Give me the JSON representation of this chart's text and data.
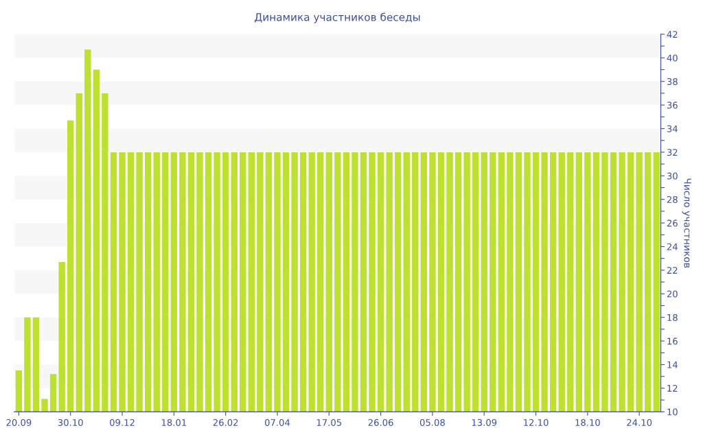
{
  "chart_data": {
    "type": "bar",
    "title": "Динамика участников беседы",
    "ylabel": "Число участников",
    "categories": [
      "20.09",
      null,
      null,
      null,
      null,
      null,
      "30.10",
      null,
      null,
      null,
      null,
      null,
      "09.12",
      null,
      null,
      null,
      null,
      null,
      "18.01",
      null,
      null,
      null,
      null,
      null,
      "26.02",
      null,
      null,
      null,
      null,
      null,
      "07.04",
      null,
      null,
      null,
      null,
      null,
      "17.05",
      null,
      null,
      null,
      null,
      null,
      "26.06",
      null,
      null,
      null,
      null,
      null,
      "05.08",
      null,
      null,
      null,
      null,
      null,
      "13.09",
      null,
      null,
      null,
      null,
      null,
      "12.10",
      null,
      null,
      null,
      null,
      null,
      "18.10",
      null,
      null,
      null,
      null,
      null,
      "24.10",
      null,
      null
    ],
    "values": [
      13.5,
      18,
      18,
      11.1,
      13.2,
      22.7,
      34.7,
      37,
      40.7,
      39,
      37,
      32,
      32,
      32,
      32,
      32,
      32,
      32,
      32,
      32,
      32,
      32,
      32,
      32,
      32,
      32,
      32,
      32,
      32,
      32,
      32,
      32,
      32,
      32,
      32,
      32,
      32,
      32,
      32,
      32,
      32,
      32,
      32,
      32,
      32,
      32,
      32,
      32,
      32,
      32,
      32,
      32,
      32,
      32,
      32,
      32,
      32,
      32,
      32,
      32,
      32,
      32,
      32,
      32,
      32,
      32,
      32,
      32,
      32,
      32,
      32,
      32,
      32,
      32,
      32
    ],
    "color": "#bde031",
    "ylim": [
      10,
      42
    ],
    "yticks": [
      10,
      {
        "value": 11,
        "label": null
      },
      12,
      {
        "value": 13,
        "label": null
      },
      14,
      {
        "value": 15,
        "label": null
      },
      16,
      {
        "value": 17,
        "label": null
      },
      18,
      {
        "value": 19,
        "label": null
      },
      20,
      {
        "value": 21,
        "label": null
      },
      22,
      {
        "value": 23,
        "label": null
      },
      24,
      {
        "value": 25,
        "label": null
      },
      26,
      {
        "value": 27,
        "label": null
      },
      28,
      {
        "value": 29,
        "label": null
      },
      30,
      {
        "value": 31,
        "label": null
      },
      32,
      {
        "value": 33,
        "label": null
      },
      34,
      {
        "value": 35,
        "label": null
      },
      36,
      {
        "value": 37,
        "label": null
      },
      38,
      {
        "value": 39,
        "label": null
      },
      40,
      {
        "value": 41,
        "label": null
      },
      42
    ],
    "bands": [
      {
        "axis": "y",
        "from": 12,
        "to": 14,
        "color": "#f7f7f7"
      },
      {
        "axis": "y",
        "from": 16,
        "to": 18,
        "color": "#f7f7f7"
      },
      {
        "axis": "y",
        "from": 20,
        "to": 22,
        "color": "#f7f7f7"
      },
      {
        "axis": "y",
        "from": 24,
        "to": 26,
        "color": "#f7f7f7"
      },
      {
        "axis": "y",
        "from": 28,
        "to": 30,
        "color": "#f7f7f7"
      },
      {
        "axis": "y",
        "from": 32,
        "to": 34,
        "color": "#f7f7f7"
      },
      {
        "axis": "y",
        "from": 36,
        "to": 38,
        "color": "#f7f7f7"
      },
      {
        "axis": "y",
        "from": 40,
        "to": 42,
        "color": "#f7f7f7"
      }
    ],
    "grid": false,
    "legend": false
  }
}
